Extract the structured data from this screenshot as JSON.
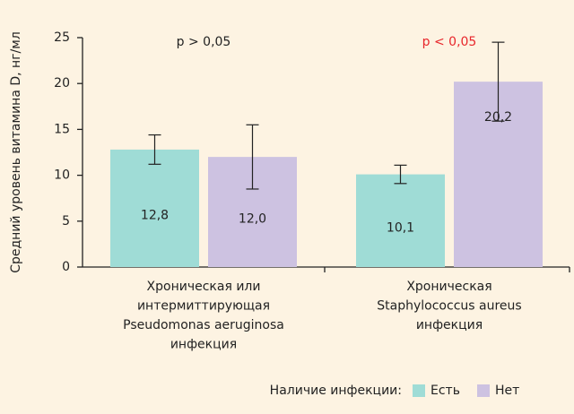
{
  "chart_data": {
    "type": "bar",
    "ylabel": "Средний уровень витамина D, нг/мл",
    "categories": [
      [
        "Хроническая или",
        "интермиттирующая",
        "Pseudomonas aeruginosa",
        "инфекция"
      ],
      [
        "Хроническая",
        "Staphylococcus aureus",
        "инфекция"
      ]
    ],
    "legend_title": "Наличие инфекции:",
    "series": [
      {
        "name": "Есть",
        "color": "#9fdcd6",
        "values": [
          12.8,
          10.1
        ],
        "value_labels": [
          "12,8",
          "10,1"
        ],
        "errors": [
          1.6,
          1.0
        ]
      },
      {
        "name": "Нет",
        "color": "#cdc2e1",
        "values": [
          12.0,
          20.2
        ],
        "value_labels": [
          "12,0",
          "20,2"
        ],
        "errors": [
          3.5,
          4.3
        ]
      }
    ],
    "annotations": [
      {
        "text": "p > 0,05",
        "color": "#222222"
      },
      {
        "text": "p < 0,05",
        "color": "#e8262b"
      }
    ],
    "ylim": [
      0,
      25
    ],
    "yticks": [
      0,
      5,
      10,
      15,
      20,
      25
    ]
  }
}
